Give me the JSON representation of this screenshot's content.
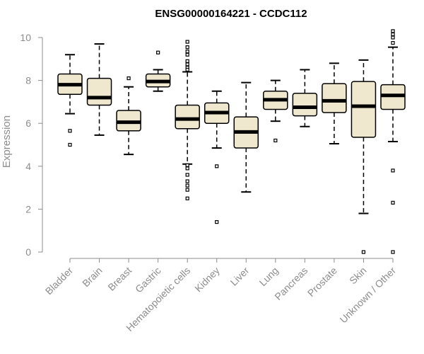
{
  "chart_data": {
    "type": "boxplot",
    "title": "ENSG00000164221 - CCDC112",
    "xlabel": "",
    "ylabel": "Expression",
    "ylim": [
      0,
      10
    ],
    "yticks": [
      0,
      2,
      4,
      6,
      8,
      10
    ],
    "box_fill": "#efe8cf",
    "categories": [
      "Bladder",
      "Brain",
      "Breast",
      "Gastric",
      "Hematopoietic cells",
      "Kidney",
      "Liver",
      "Lung",
      "Pancreas",
      "Prostate",
      "Skin",
      "Unknown / Other"
    ],
    "boxes": [
      {
        "whisker_low": 6.45,
        "q1": 7.35,
        "median": 7.8,
        "q3": 8.3,
        "whisker_high": 9.2,
        "outliers": [
          5.65,
          5.0
        ]
      },
      {
        "whisker_low": 5.45,
        "q1": 6.85,
        "median": 7.2,
        "q3": 8.1,
        "whisker_high": 9.7,
        "outliers": []
      },
      {
        "whisker_low": 4.55,
        "q1": 5.65,
        "median": 6.05,
        "q3": 6.6,
        "whisker_high": 7.7,
        "outliers": [
          8.1
        ]
      },
      {
        "whisker_low": 7.5,
        "q1": 7.7,
        "median": 7.95,
        "q3": 8.3,
        "whisker_high": 8.5,
        "outliers": [
          9.3
        ]
      },
      {
        "whisker_low": 4.1,
        "q1": 5.75,
        "median": 6.2,
        "q3": 6.85,
        "whisker_high": 8.4,
        "outliers": [
          9.8,
          9.55,
          9.35,
          9.2,
          8.9,
          8.75,
          8.6,
          8.5,
          4.05,
          3.9,
          3.6,
          3.3,
          3.1,
          2.9,
          2.5
        ]
      },
      {
        "whisker_low": 4.85,
        "q1": 6.0,
        "median": 6.5,
        "q3": 6.95,
        "whisker_high": 7.5,
        "outliers": [
          4.0,
          1.4
        ]
      },
      {
        "whisker_low": 2.8,
        "q1": 4.85,
        "median": 5.6,
        "q3": 6.3,
        "whisker_high": 7.9,
        "outliers": []
      },
      {
        "whisker_low": 6.1,
        "q1": 6.65,
        "median": 7.1,
        "q3": 7.5,
        "whisker_high": 8.0,
        "outliers": [
          5.2
        ]
      },
      {
        "whisker_low": 5.85,
        "q1": 6.35,
        "median": 6.75,
        "q3": 7.4,
        "whisker_high": 8.5,
        "outliers": []
      },
      {
        "whisker_low": 5.05,
        "q1": 6.5,
        "median": 7.05,
        "q3": 7.85,
        "whisker_high": 8.8,
        "outliers": []
      },
      {
        "whisker_low": 1.8,
        "q1": 5.35,
        "median": 6.8,
        "q3": 7.95,
        "whisker_high": 8.95,
        "outliers": [
          0.0
        ]
      },
      {
        "whisker_low": 5.15,
        "q1": 6.65,
        "median": 7.3,
        "q3": 7.8,
        "whisker_high": 9.55,
        "outliers": [
          10.3,
          10.15,
          10.0,
          9.75,
          3.8,
          2.3,
          0.0
        ]
      }
    ]
  }
}
